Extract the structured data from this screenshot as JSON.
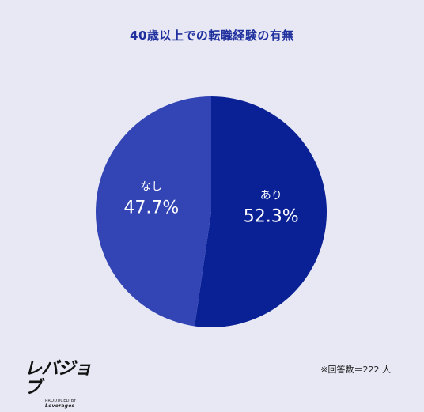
{
  "chart_data": {
    "type": "pie",
    "title": "40歳以上での転職経験の有無",
    "slices": [
      {
        "label": "あり",
        "value": 52.3,
        "display": "52.3%",
        "color": "#0a2196"
      },
      {
        "label": "なし",
        "value": 47.7,
        "display": "47.7%",
        "color": "#3344b5"
      }
    ],
    "start_angle": "12 o'clock, clockwise",
    "label_color": "#ffffff"
  },
  "footer": {
    "logo_text": "レバジョブ",
    "logo_sub_produced": "PRODUCED BY",
    "logo_sub_brand": "Leverages",
    "note": "※回答数＝222 人"
  }
}
